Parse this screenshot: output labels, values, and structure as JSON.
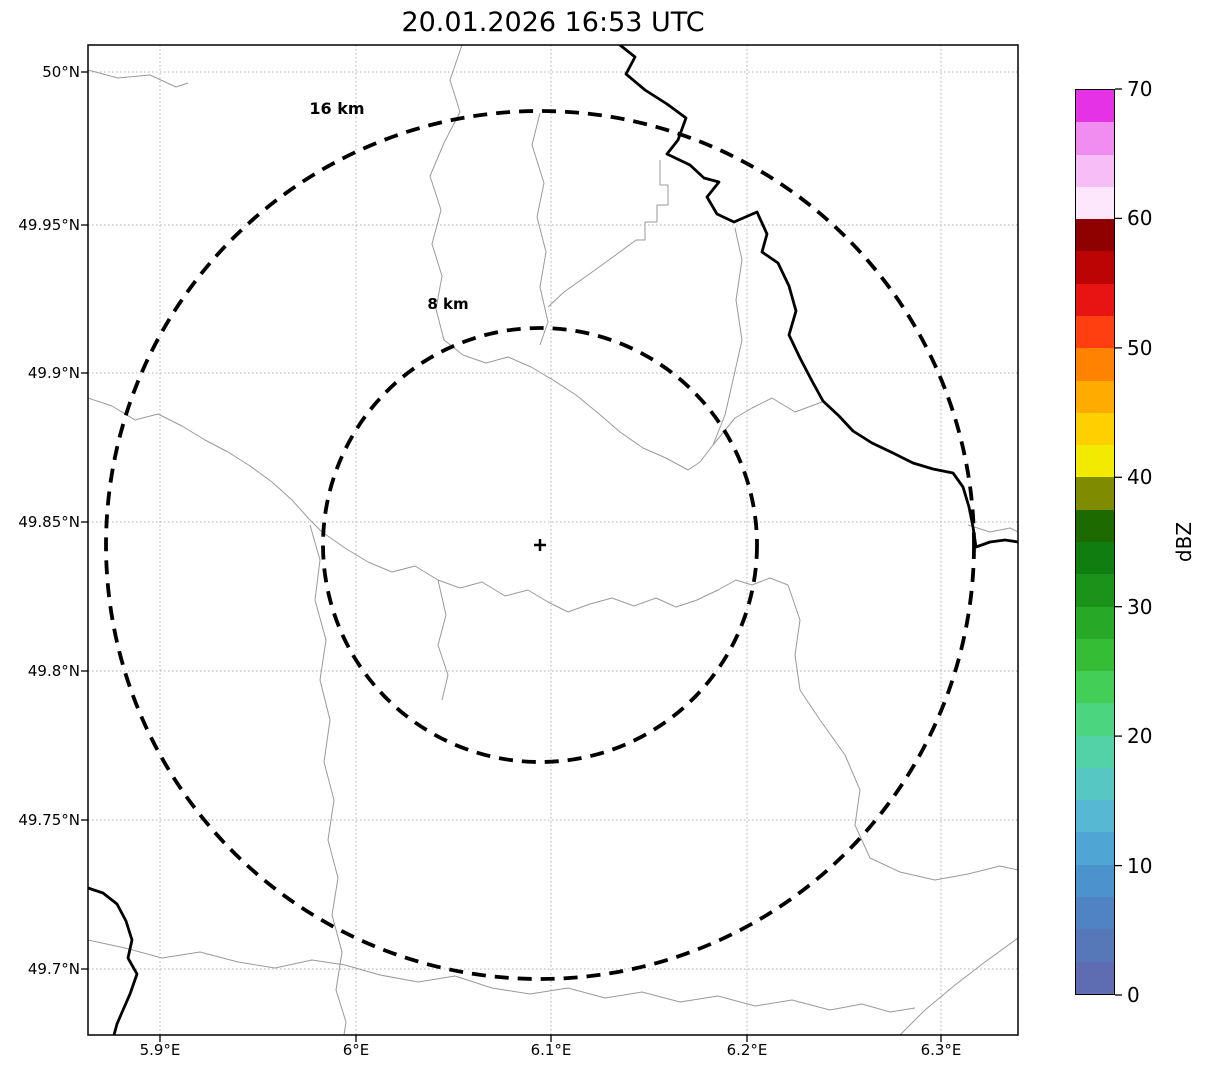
{
  "title": "20.01.2026 16:53 UTC",
  "map": {
    "range_rings": [
      {
        "label": "16 km",
        "radius_km": 16
      },
      {
        "label": "8 km",
        "radius_km": 8
      }
    ],
    "center_marker": "+",
    "x_ticks": [
      "5.9°E",
      "6°E",
      "6.1°E",
      "6.2°E",
      "6.3°E"
    ],
    "y_ticks": [
      "50°N",
      "49.95°N",
      "49.9°N",
      "49.85°N",
      "49.8°N",
      "49.75°N",
      "49.7°N"
    ]
  },
  "colorbar": {
    "label": "dBZ",
    "range_min": 0,
    "range_max": 70,
    "tick_labels_top_to_bottom": [
      "70",
      "60",
      "50",
      "40",
      "30",
      "20",
      "10",
      "0"
    ],
    "colors_bottom_to_top": [
      "#5e6db2",
      "#5677b8",
      "#4f83c2",
      "#4b93cc",
      "#4fa6d4",
      "#57b8d4",
      "#57c7c3",
      "#53d2a7",
      "#4cd57f",
      "#43cf57",
      "#35bd35",
      "#27a927",
      "#1b931b",
      "#107d10",
      "#1d6a00",
      "#7f8c00",
      "#f2ea00",
      "#ffd000",
      "#ffab00",
      "#ff8300",
      "#ff3f10",
      "#e81414",
      "#bc0404",
      "#8f0000",
      "#fce7fc",
      "#f7bdf7",
      "#f18df1",
      "#e632e6"
    ]
  }
}
